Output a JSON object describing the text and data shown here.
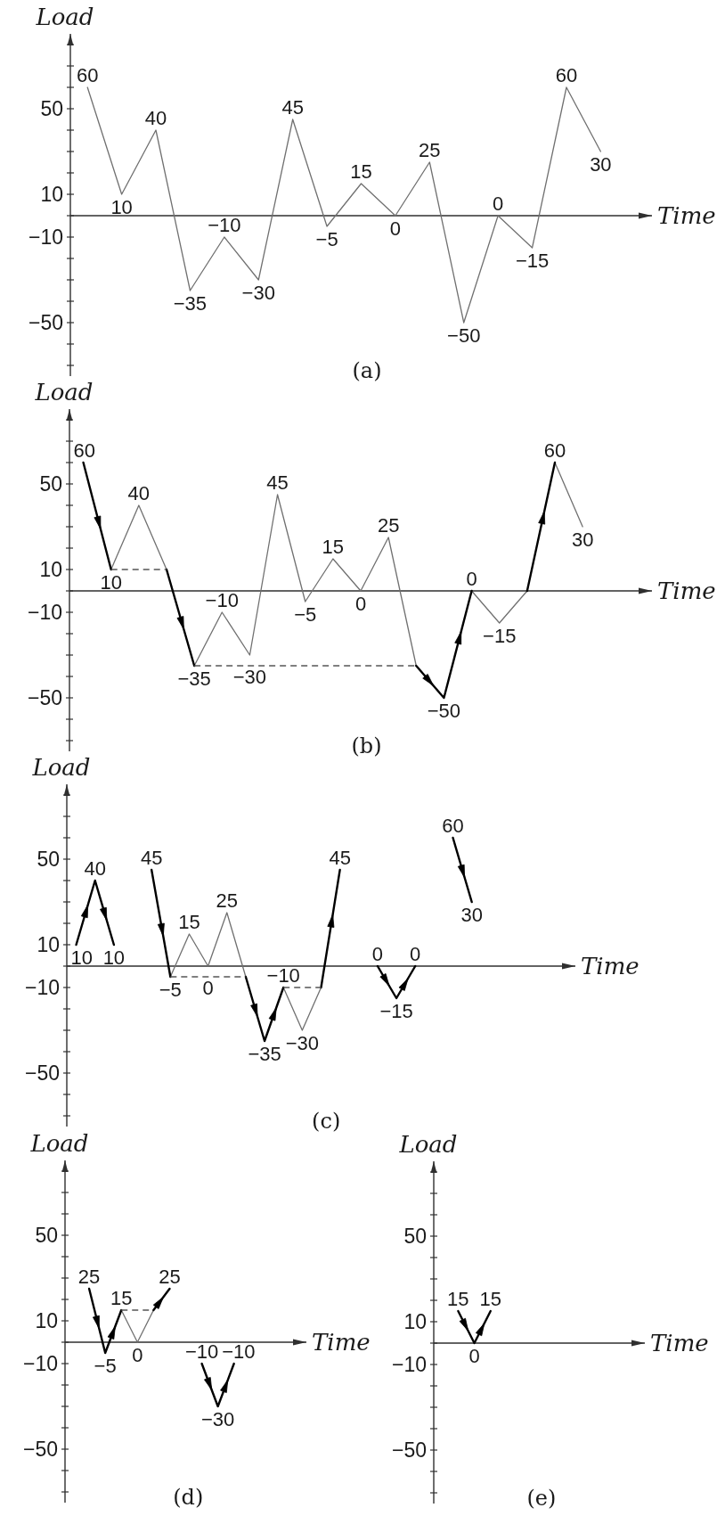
{
  "chart_data": [
    {
      "type": "line",
      "title": "(a)",
      "xlabel": "Time",
      "ylabel": "Load",
      "ylim": [
        -75,
        85
      ],
      "tick_labels": "y",
      "yticks": [
        {
          "value": -70,
          "label": null
        },
        {
          "value": -60,
          "label": null
        },
        -50,
        {
          "value": -40,
          "label": null
        },
        {
          "value": -30,
          "label": null
        },
        {
          "value": -20,
          "label": null
        },
        -10,
        {
          "value": 0,
          "label": null
        },
        10,
        {
          "value": 20,
          "label": null
        },
        {
          "value": 30,
          "label": null
        },
        {
          "value": 40,
          "label": null
        },
        50,
        {
          "value": 60,
          "label": null
        },
        {
          "value": 70,
          "label": null
        },
        {
          "value": 80,
          "label": null
        }
      ],
      "categories": [
        null,
        null,
        null,
        null,
        null,
        null,
        null,
        null,
        null,
        null,
        null,
        null,
        null,
        null,
        null,
        null,
        null
      ],
      "series": [
        {
          "color": "#707070",
          "values": [
            60,
            10,
            40,
            -35,
            -10,
            -30,
            45,
            -5,
            15,
            0,
            25,
            -50,
            0,
            -15,
            60,
            30,
            null
          ],
          "value_labels": [
            "60",
            "10",
            "40",
            "−35",
            "−10",
            "−30",
            "45",
            "−5",
            "15",
            "0",
            "25",
            "−50",
            "0",
            "−15",
            "60",
            "30",
            null
          ]
        }
      ]
    },
    {
      "type": "line",
      "title": "(b)",
      "xlabel": "Time",
      "ylabel": "Load",
      "ylim": [
        -75,
        85
      ],
      "tick_labels": "y",
      "yticks": [
        {
          "value": -70,
          "label": null
        },
        {
          "value": -60,
          "label": null
        },
        -50,
        {
          "value": -40,
          "label": null
        },
        {
          "value": -30,
          "label": null
        },
        {
          "value": -20,
          "label": null
        },
        -10,
        {
          "value": 0,
          "label": null
        },
        10,
        {
          "value": 20,
          "label": null
        },
        {
          "value": 30,
          "label": null
        },
        {
          "value": 40,
          "label": null
        },
        50,
        {
          "value": 60,
          "label": null
        },
        {
          "value": 70,
          "label": null
        },
        {
          "value": 80,
          "label": null
        }
      ],
      "categories": [
        null,
        null,
        null,
        null,
        null,
        null,
        null,
        null,
        null,
        null,
        null,
        null,
        null,
        null,
        null,
        null,
        null,
        null,
        null,
        null,
        null
      ],
      "series": [
        {
          "color": "#707070",
          "values": [
            null,
            10,
            40,
            10,
            null,
            null,
            null,
            null,
            null,
            null,
            null,
            null,
            null,
            null,
            0,
            -15,
            0,
            null,
            null,
            null,
            null
          ],
          "value_labels": [
            null,
            null,
            "40",
            null,
            null,
            null,
            null,
            null,
            null,
            null,
            null,
            null,
            null,
            null,
            null,
            "−15",
            null,
            null,
            null,
            null,
            null
          ]
        },
        {
          "color": "#707070",
          "values": [
            null,
            null,
            null,
            null,
            -35,
            -10,
            -30,
            45,
            -5,
            15,
            0,
            25,
            -35,
            null,
            null,
            null,
            null,
            60,
            30,
            null,
            null
          ],
          "value_labels": [
            null,
            null,
            null,
            null,
            null,
            "−10",
            "−30",
            "45",
            "−5",
            "15",
            "0",
            "25",
            null,
            null,
            null,
            null,
            null,
            null,
            "30",
            null,
            null
          ]
        },
        {
          "color": "#000000",
          "values": [
            60,
            10,
            null,
            10,
            -35,
            null,
            null,
            null,
            null,
            null,
            null,
            null,
            -35,
            -50,
            0,
            null,
            0,
            60,
            null,
            null,
            null
          ],
          "value_labels": [
            "60",
            "10",
            null,
            null,
            "−35",
            null,
            null,
            null,
            null,
            null,
            null,
            null,
            null,
            "−50",
            "0",
            null,
            null,
            "60",
            null,
            null,
            null
          ]
        },
        {
          "color": "#555555",
          "line_style": "dashed",
          "values": [
            null,
            10,
            10,
            10,
            null,
            null,
            null,
            null,
            null,
            null,
            null,
            null,
            null,
            null,
            null,
            null,
            null,
            null,
            null,
            null,
            null
          ]
        },
        {
          "color": "#555555",
          "line_style": "dashed",
          "values": [
            null,
            null,
            null,
            null,
            -35,
            -35,
            -35,
            -35,
            -35,
            -35,
            -35,
            -35,
            -35,
            null,
            null,
            null,
            null,
            null,
            null,
            null,
            null
          ]
        }
      ]
    },
    {
      "type": "line",
      "title": "(c)",
      "xlabel": "Time",
      "ylabel": "Load",
      "ylim": [
        -75,
        85
      ],
      "tick_labels": "y",
      "yticks": [
        {
          "value": -70,
          "label": null
        },
        {
          "value": -60,
          "label": null
        },
        -50,
        {
          "value": -40,
          "label": null
        },
        {
          "value": -30,
          "label": null
        },
        {
          "value": -20,
          "label": null
        },
        -10,
        {
          "value": 0,
          "label": null
        },
        10,
        {
          "value": 20,
          "label": null
        },
        {
          "value": 30,
          "label": null
        },
        {
          "value": 40,
          "label": null
        },
        50,
        {
          "value": 60,
          "label": null
        },
        {
          "value": 70,
          "label": null
        },
        {
          "value": 80,
          "label": null
        }
      ],
      "categories": [
        null,
        null,
        null,
        null,
        null,
        null,
        null,
        null,
        null,
        null,
        null,
        null,
        null,
        null,
        null,
        null,
        null,
        null,
        null,
        null,
        null,
        null,
        null,
        null,
        null,
        null,
        null
      ],
      "series": [
        {
          "color": "#707070",
          "values": [
            null,
            null,
            null,
            null,
            null,
            -5,
            15,
            0,
            25,
            -5,
            null,
            -10,
            -30,
            -10,
            null,
            null,
            null,
            null,
            null,
            null,
            null,
            null,
            null,
            null,
            null,
            null,
            null
          ],
          "value_labels": [
            null,
            null,
            null,
            null,
            null,
            null,
            "15",
            "0",
            "25",
            null,
            null,
            null,
            "−30",
            null,
            null,
            null,
            null,
            null,
            null,
            null,
            null,
            null,
            null,
            null,
            null,
            null,
            null
          ]
        },
        {
          "color": "#000000",
          "values": [
            10,
            40,
            10,
            null,
            45,
            -5,
            null,
            null,
            null,
            -5,
            -35,
            -10,
            null,
            -10,
            45,
            null,
            0,
            -15,
            0,
            null,
            60,
            30,
            null,
            null,
            null,
            null,
            null
          ],
          "value_labels": [
            "10",
            "40",
            "10",
            null,
            "45",
            "−5",
            null,
            null,
            null,
            null,
            "−35",
            "−10",
            null,
            null,
            "45",
            null,
            "0",
            "−15",
            "0",
            null,
            "60",
            "30",
            null,
            null,
            null,
            null,
            null
          ]
        },
        {
          "color": "#555555",
          "line_style": "dashed",
          "values": [
            null,
            null,
            null,
            null,
            null,
            -5,
            -5,
            -5,
            -5,
            -5,
            null,
            -10,
            -10,
            -10,
            null,
            null,
            null,
            null,
            null,
            null,
            null,
            null,
            null,
            null,
            null,
            null,
            null
          ]
        }
      ]
    },
    {
      "type": "line",
      "title": "(d)",
      "xlabel": "Time",
      "ylabel": "Load",
      "ylim": [
        -75,
        85
      ],
      "tick_labels": "y",
      "yticks": [
        {
          "value": -70,
          "label": null
        },
        {
          "value": -60,
          "label": null
        },
        -50,
        {
          "value": -40,
          "label": null
        },
        {
          "value": -30,
          "label": null
        },
        {
          "value": -20,
          "label": null
        },
        -10,
        {
          "value": 0,
          "label": null
        },
        10,
        {
          "value": 20,
          "label": null
        },
        {
          "value": 30,
          "label": null
        },
        {
          "value": 40,
          "label": null
        },
        50,
        {
          "value": 60,
          "label": null
        },
        {
          "value": 70,
          "label": null
        },
        {
          "value": 80,
          "label": null
        }
      ],
      "categories": [
        null,
        null,
        null,
        null,
        null,
        null,
        null,
        null,
        null,
        null,
        null,
        null,
        null,
        null,
        null
      ],
      "series": [
        {
          "color": "#707070",
          "values": [
            null,
            null,
            null,
            15,
            0,
            15,
            null,
            null,
            null,
            null,
            null,
            null,
            null,
            null,
            null
          ],
          "value_labels": [
            null,
            null,
            null,
            null,
            "0",
            null,
            null,
            null,
            null,
            null,
            null,
            null,
            null,
            null,
            null
          ]
        },
        {
          "color": "#000000",
          "values": [
            null,
            25,
            -5,
            15,
            null,
            15,
            25,
            null,
            -10,
            -30,
            -10,
            null,
            null,
            null,
            null
          ],
          "value_labels": [
            null,
            "25",
            "−5",
            "15",
            null,
            null,
            "25",
            null,
            "−10",
            "−30",
            "−10",
            null,
            null,
            null,
            null
          ]
        },
        {
          "color": "#555555",
          "line_style": "dashed",
          "values": [
            null,
            null,
            null,
            15,
            15,
            15,
            null,
            null,
            null,
            null,
            null,
            null,
            null,
            null,
            null
          ]
        }
      ]
    },
    {
      "type": "line",
      "title": "(e)",
      "xlabel": "Time",
      "ylabel": "Load",
      "ylim": [
        -75,
        85
      ],
      "tick_labels": "y",
      "yticks": [
        {
          "value": -70,
          "label": null
        },
        {
          "value": -60,
          "label": null
        },
        -50,
        {
          "value": -40,
          "label": null
        },
        {
          "value": -30,
          "label": null
        },
        {
          "value": -20,
          "label": null
        },
        -10,
        {
          "value": 0,
          "label": null
        },
        10,
        {
          "value": 20,
          "label": null
        },
        {
          "value": 30,
          "label": null
        },
        {
          "value": 40,
          "label": null
        },
        50,
        {
          "value": 60,
          "label": null
        },
        {
          "value": 70,
          "label": null
        },
        {
          "value": 80,
          "label": null
        }
      ],
      "categories": [
        null,
        null,
        null,
        null,
        null,
        null,
        null,
        null,
        null,
        null,
        null,
        null,
        null
      ],
      "series": [
        {
          "color": "#000000",
          "values": [
            null,
            15,
            0,
            15,
            null,
            null,
            null,
            null,
            null,
            null,
            null,
            null,
            null
          ],
          "value_labels": [
            null,
            "15",
            "0",
            "15",
            null,
            null,
            null,
            null,
            null,
            null,
            null,
            null,
            null
          ]
        }
      ]
    }
  ]
}
